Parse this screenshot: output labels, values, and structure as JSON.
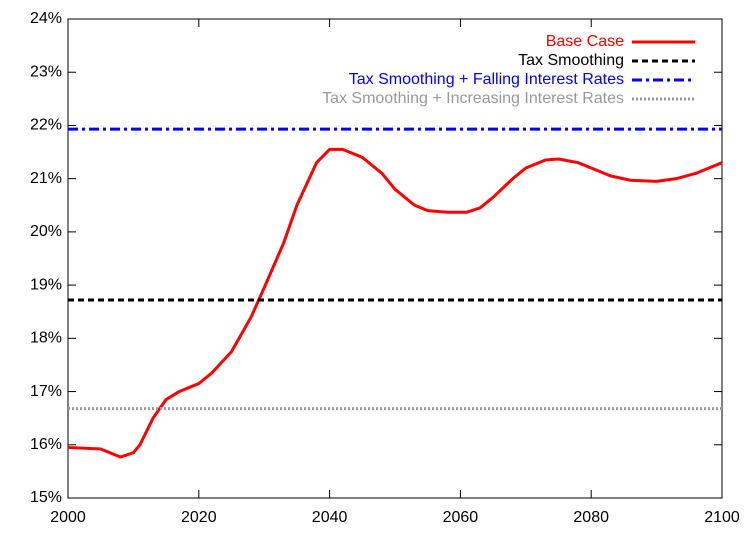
{
  "chart_data": {
    "type": "line",
    "xlim": [
      2000,
      2100
    ],
    "xticks": [
      2000,
      2020,
      2040,
      2060,
      2080,
      2100
    ],
    "ylim": [
      15,
      24
    ],
    "yticks": [
      {
        "value": 15,
        "label": "15%"
      },
      {
        "value": 16,
        "label": "16%"
      },
      {
        "value": 17,
        "label": "17%"
      },
      {
        "value": 18,
        "label": "18%"
      },
      {
        "value": 19,
        "label": "19%"
      },
      {
        "value": 20,
        "label": "20%"
      },
      {
        "value": 21,
        "label": "21%"
      },
      {
        "value": 22,
        "label": "22%"
      },
      {
        "value": 23,
        "label": "23%"
      },
      {
        "value": 24,
        "label": "24%"
      }
    ],
    "legend": "upper right",
    "series": [
      {
        "name": "Base Case",
        "color": "#ff0000",
        "dash": "solid",
        "x": [
          2000,
          2005,
          2008,
          2010,
          2011,
          2013,
          2015,
          2017,
          2020,
          2022,
          2025,
          2028,
          2030,
          2033,
          2035,
          2038,
          2040,
          2042,
          2045,
          2048,
          2050,
          2053,
          2055,
          2058,
          2061,
          2063,
          2065,
          2068,
          2070,
          2073,
          2075,
          2078,
          2080,
          2083,
          2086,
          2090,
          2093,
          2096,
          2100
        ],
        "values": [
          15.95,
          15.92,
          15.77,
          15.85,
          16.0,
          16.5,
          16.85,
          17.0,
          17.15,
          17.35,
          17.75,
          18.4,
          18.95,
          19.8,
          20.5,
          21.3,
          21.55,
          21.55,
          21.4,
          21.1,
          20.8,
          20.5,
          20.4,
          20.37,
          20.37,
          20.45,
          20.65,
          21.0,
          21.2,
          21.35,
          21.37,
          21.3,
          21.2,
          21.05,
          20.97,
          20.95,
          21.0,
          21.1,
          21.3
        ]
      },
      {
        "name": "Tax Smoothing",
        "color": "#000000",
        "dash": "dashed",
        "x": [
          2000,
          2100
        ],
        "values": [
          18.72,
          18.72
        ]
      },
      {
        "name": "Tax Smoothing + Falling Interest Rates",
        "color": "#0000ff",
        "dash": "dashdot",
        "x": [
          2000,
          2100
        ],
        "values": [
          21.93,
          21.93
        ]
      },
      {
        "name": "Tax Smoothing + Increasing Interest Rates",
        "color": "#999999",
        "dash": "dotted",
        "x": [
          2000,
          2100
        ],
        "values": [
          16.68,
          16.68
        ]
      }
    ]
  }
}
